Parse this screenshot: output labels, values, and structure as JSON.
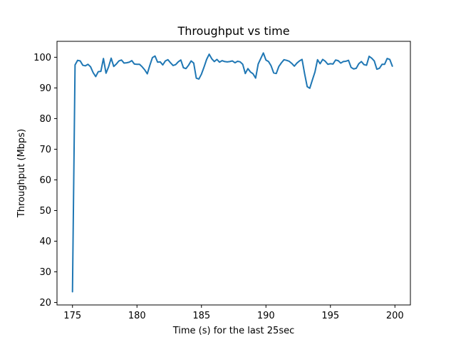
{
  "chart_data": {
    "type": "line",
    "title": "Throughput vs time",
    "xlabel": "Time (s) for the last 25sec",
    "ylabel": "Throughput (Mbps)",
    "xlim": [
      173.8,
      201.2
    ],
    "ylim": [
      19.2,
      105.2
    ],
    "x_ticks": [
      175,
      180,
      185,
      190,
      195,
      200
    ],
    "y_ticks": [
      20,
      30,
      40,
      50,
      60,
      70,
      80,
      90,
      100
    ],
    "grid": false,
    "line_color": "#1f77b4",
    "series": [
      {
        "x": [
          175.0,
          175.2,
          175.4,
          175.6,
          175.8,
          176.0,
          176.2,
          176.4,
          176.6,
          176.8,
          177.0,
          177.2,
          177.4,
          177.6,
          177.8,
          178.0,
          178.2,
          178.4,
          178.6,
          178.8,
          179.0,
          179.2,
          179.4,
          179.6,
          179.8,
          180.0,
          180.2,
          180.4,
          180.6,
          180.8,
          181.0,
          181.2,
          181.4,
          181.6,
          181.8,
          182.0,
          182.2,
          182.4,
          182.6,
          182.8,
          183.0,
          183.2,
          183.4,
          183.6,
          183.8,
          184.0,
          184.2,
          184.4,
          184.6,
          184.8,
          185.0,
          185.2,
          185.4,
          185.6,
          185.8,
          186.0,
          186.2,
          186.4,
          186.6,
          186.8,
          187.0,
          187.2,
          187.4,
          187.6,
          187.8,
          188.0,
          188.2,
          188.4,
          188.6,
          188.8,
          189.0,
          189.2,
          189.4,
          189.6,
          189.8,
          190.0,
          190.2,
          190.4,
          190.6,
          190.8,
          191.0,
          191.2,
          191.4,
          191.6,
          191.8,
          192.0,
          192.2,
          192.4,
          192.6,
          192.8,
          193.0,
          193.2,
          193.4,
          193.6,
          193.8,
          194.0,
          194.2,
          194.4,
          194.6,
          194.8,
          195.0,
          195.2,
          195.4,
          195.6,
          195.8,
          196.0,
          196.2,
          196.4,
          196.6,
          196.8,
          197.0,
          197.2,
          197.4,
          197.6,
          197.8,
          198.0,
          198.2,
          198.4,
          198.6,
          198.8,
          199.0,
          199.2,
          199.4,
          199.6,
          199.8
        ],
        "values": [
          23.5,
          97.5,
          99.0,
          98.8,
          97.4,
          97.2,
          97.7,
          96.9,
          95.0,
          93.7,
          95.3,
          95.4,
          99.6,
          94.8,
          96.9,
          99.7,
          97.0,
          97.8,
          98.8,
          99.1,
          98.1,
          98.2,
          98.4,
          98.9,
          97.8,
          97.7,
          97.7,
          96.9,
          95.9,
          94.6,
          97.4,
          99.9,
          100.4,
          98.4,
          98.5,
          97.5,
          98.8,
          99.2,
          98.2,
          97.3,
          97.6,
          98.5,
          99.1,
          96.6,
          96.3,
          97.4,
          98.8,
          98.1,
          93.2,
          92.9,
          94.5,
          96.8,
          99.3,
          101.0,
          99.5,
          98.6,
          99.3,
          98.4,
          98.9,
          98.6,
          98.5,
          98.6,
          98.8,
          98.2,
          98.7,
          98.5,
          97.7,
          94.7,
          96.3,
          95.2,
          94.6,
          93.2,
          97.8,
          99.6,
          101.4,
          99.1,
          98.6,
          97.2,
          94.9,
          94.7,
          97.0,
          98.2,
          99.2,
          99.0,
          98.7,
          98.0,
          97.1,
          98.1,
          98.8,
          99.3,
          94.6,
          90.4,
          89.9,
          92.6,
          95.2,
          99.2,
          97.9,
          99.3,
          98.7,
          97.7,
          97.9,
          97.8,
          99.1,
          98.9,
          98.1,
          98.6,
          98.7,
          99.0,
          96.7,
          96.2,
          96.4,
          97.9,
          98.6,
          97.6,
          97.4,
          100.3,
          99.7,
          98.8,
          96.1,
          96.4,
          97.7,
          97.7,
          99.6,
          99.3,
          97.1
        ]
      }
    ]
  }
}
